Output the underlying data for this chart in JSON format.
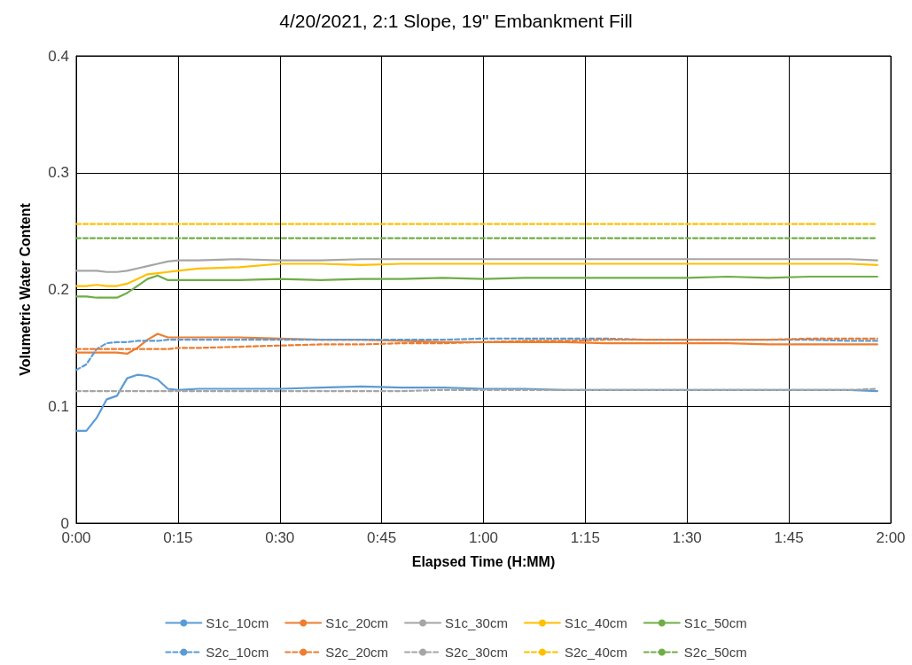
{
  "chart_data": {
    "type": "line",
    "title": "4/20/2021, 2:1 Slope, 19\" Embankment Fill",
    "xlabel": "Elapsed Time (H:MM)",
    "ylabel": "Volumetric Water Content",
    "x": [
      0,
      0.025,
      0.05,
      0.075,
      0.1,
      0.125,
      0.15,
      0.175,
      0.2,
      0.225,
      0.25,
      0.3,
      0.4,
      0.5,
      0.6,
      0.7,
      0.8,
      0.9,
      1.0,
      1.1,
      1.2,
      1.3,
      1.4,
      1.5,
      1.6,
      1.7,
      1.8,
      1.9,
      1.967
    ],
    "series": [
      {
        "name": "S1c_10cm",
        "color": "#5b9bd5",
        "line_style": "solid",
        "values": [
          0.079,
          0.079,
          0.09,
          0.106,
          0.109,
          0.124,
          0.127,
          0.126,
          0.123,
          0.115,
          0.114,
          0.115,
          0.115,
          0.115,
          0.116,
          0.117,
          0.116,
          0.116,
          0.115,
          0.115,
          0.114,
          0.114,
          0.114,
          0.114,
          0.114,
          0.114,
          0.114,
          0.114,
          0.113
        ]
      },
      {
        "name": "S1c_20cm",
        "color": "#ed7d31",
        "line_style": "solid",
        "values": [
          0.146,
          0.146,
          0.146,
          0.146,
          0.146,
          0.145,
          0.15,
          0.157,
          0.162,
          0.159,
          0.159,
          0.159,
          0.159,
          0.158,
          0.157,
          0.157,
          0.156,
          0.155,
          0.155,
          0.155,
          0.155,
          0.154,
          0.154,
          0.154,
          0.154,
          0.153,
          0.153,
          0.153,
          0.153
        ]
      },
      {
        "name": "S1c_30cm",
        "color": "#a5a5a5",
        "line_style": "solid",
        "values": [
          0.216,
          0.216,
          0.216,
          0.215,
          0.215,
          0.216,
          0.218,
          0.22,
          0.222,
          0.224,
          0.225,
          0.225,
          0.226,
          0.225,
          0.225,
          0.226,
          0.226,
          0.226,
          0.226,
          0.226,
          0.226,
          0.226,
          0.226,
          0.226,
          0.226,
          0.226,
          0.226,
          0.226,
          0.225
        ]
      },
      {
        "name": "S1c_40cm",
        "color": "#ffc000",
        "line_style": "solid",
        "values": [
          0.203,
          0.203,
          0.204,
          0.203,
          0.203,
          0.205,
          0.209,
          0.213,
          0.214,
          0.215,
          0.216,
          0.218,
          0.219,
          0.222,
          0.222,
          0.221,
          0.222,
          0.222,
          0.222,
          0.222,
          0.222,
          0.222,
          0.222,
          0.222,
          0.222,
          0.222,
          0.222,
          0.222,
          0.221
        ]
      },
      {
        "name": "S1c_50cm",
        "color": "#70ad47",
        "line_style": "solid",
        "values": [
          0.194,
          0.194,
          0.193,
          0.193,
          0.193,
          0.197,
          0.203,
          0.209,
          0.212,
          0.208,
          0.208,
          0.208,
          0.208,
          0.209,
          0.208,
          0.209,
          0.209,
          0.21,
          0.209,
          0.21,
          0.21,
          0.21,
          0.21,
          0.21,
          0.211,
          0.21,
          0.211,
          0.211,
          0.211
        ]
      },
      {
        "name": "S2c_10cm",
        "color": "#5b9bd5",
        "line_style": "dashed",
        "values": [
          0.131,
          0.136,
          0.149,
          0.154,
          0.155,
          0.155,
          0.156,
          0.156,
          0.156,
          0.157,
          0.157,
          0.157,
          0.157,
          0.157,
          0.157,
          0.157,
          0.157,
          0.157,
          0.158,
          0.158,
          0.158,
          0.158,
          0.157,
          0.157,
          0.157,
          0.157,
          0.157,
          0.156,
          0.156
        ]
      },
      {
        "name": "S2c_20cm",
        "color": "#ed7d31",
        "line_style": "dashed",
        "values": [
          0.149,
          0.149,
          0.149,
          0.149,
          0.149,
          0.149,
          0.149,
          0.149,
          0.149,
          0.149,
          0.15,
          0.15,
          0.151,
          0.152,
          0.153,
          0.153,
          0.154,
          0.154,
          0.155,
          0.156,
          0.156,
          0.157,
          0.157,
          0.157,
          0.157,
          0.157,
          0.158,
          0.158,
          0.158
        ]
      },
      {
        "name": "S2c_30cm",
        "color": "#a5a5a5",
        "line_style": "dashed",
        "values": [
          0.113,
          0.113,
          0.113,
          0.113,
          0.113,
          0.113,
          0.113,
          0.113,
          0.113,
          0.113,
          0.113,
          0.113,
          0.113,
          0.113,
          0.113,
          0.113,
          0.113,
          0.114,
          0.114,
          0.114,
          0.114,
          0.114,
          0.114,
          0.114,
          0.114,
          0.114,
          0.114,
          0.114,
          0.115
        ]
      },
      {
        "name": "S2c_40cm",
        "color": "#ffc000",
        "line_style": "dashed",
        "values": [
          0.256,
          0.256,
          0.256,
          0.256,
          0.256,
          0.256,
          0.256,
          0.256,
          0.256,
          0.256,
          0.256,
          0.256,
          0.256,
          0.256,
          0.256,
          0.256,
          0.256,
          0.256,
          0.256,
          0.256,
          0.256,
          0.256,
          0.256,
          0.256,
          0.256,
          0.256,
          0.256,
          0.256,
          0.256
        ]
      },
      {
        "name": "S2c_50cm",
        "color": "#70ad47",
        "line_style": "dashed",
        "values": [
          0.244,
          0.244,
          0.244,
          0.244,
          0.244,
          0.244,
          0.244,
          0.244,
          0.244,
          0.244,
          0.244,
          0.244,
          0.244,
          0.244,
          0.244,
          0.244,
          0.244,
          0.244,
          0.244,
          0.244,
          0.244,
          0.244,
          0.244,
          0.244,
          0.244,
          0.244,
          0.244,
          0.244,
          0.244
        ]
      }
    ],
    "xlim": [
      0,
      2
    ],
    "xticks": [
      {
        "value": 0,
        "label": "0:00"
      },
      {
        "value": 0.25,
        "label": "0:15"
      },
      {
        "value": 0.5,
        "label": "0:30"
      },
      {
        "value": 0.75,
        "label": "0:45"
      },
      {
        "value": 1,
        "label": "1:00"
      },
      {
        "value": 1.25,
        "label": "1:15"
      },
      {
        "value": 1.5,
        "label": "1:30"
      },
      {
        "value": 1.75,
        "label": "1:45"
      },
      {
        "value": 2,
        "label": "2:00"
      }
    ],
    "ylim": [
      0,
      0.4
    ],
    "yticks": [
      0,
      0.1,
      0.2,
      0.3,
      0.4
    ],
    "grid": true,
    "legend": "bottom",
    "marker": "none"
  }
}
